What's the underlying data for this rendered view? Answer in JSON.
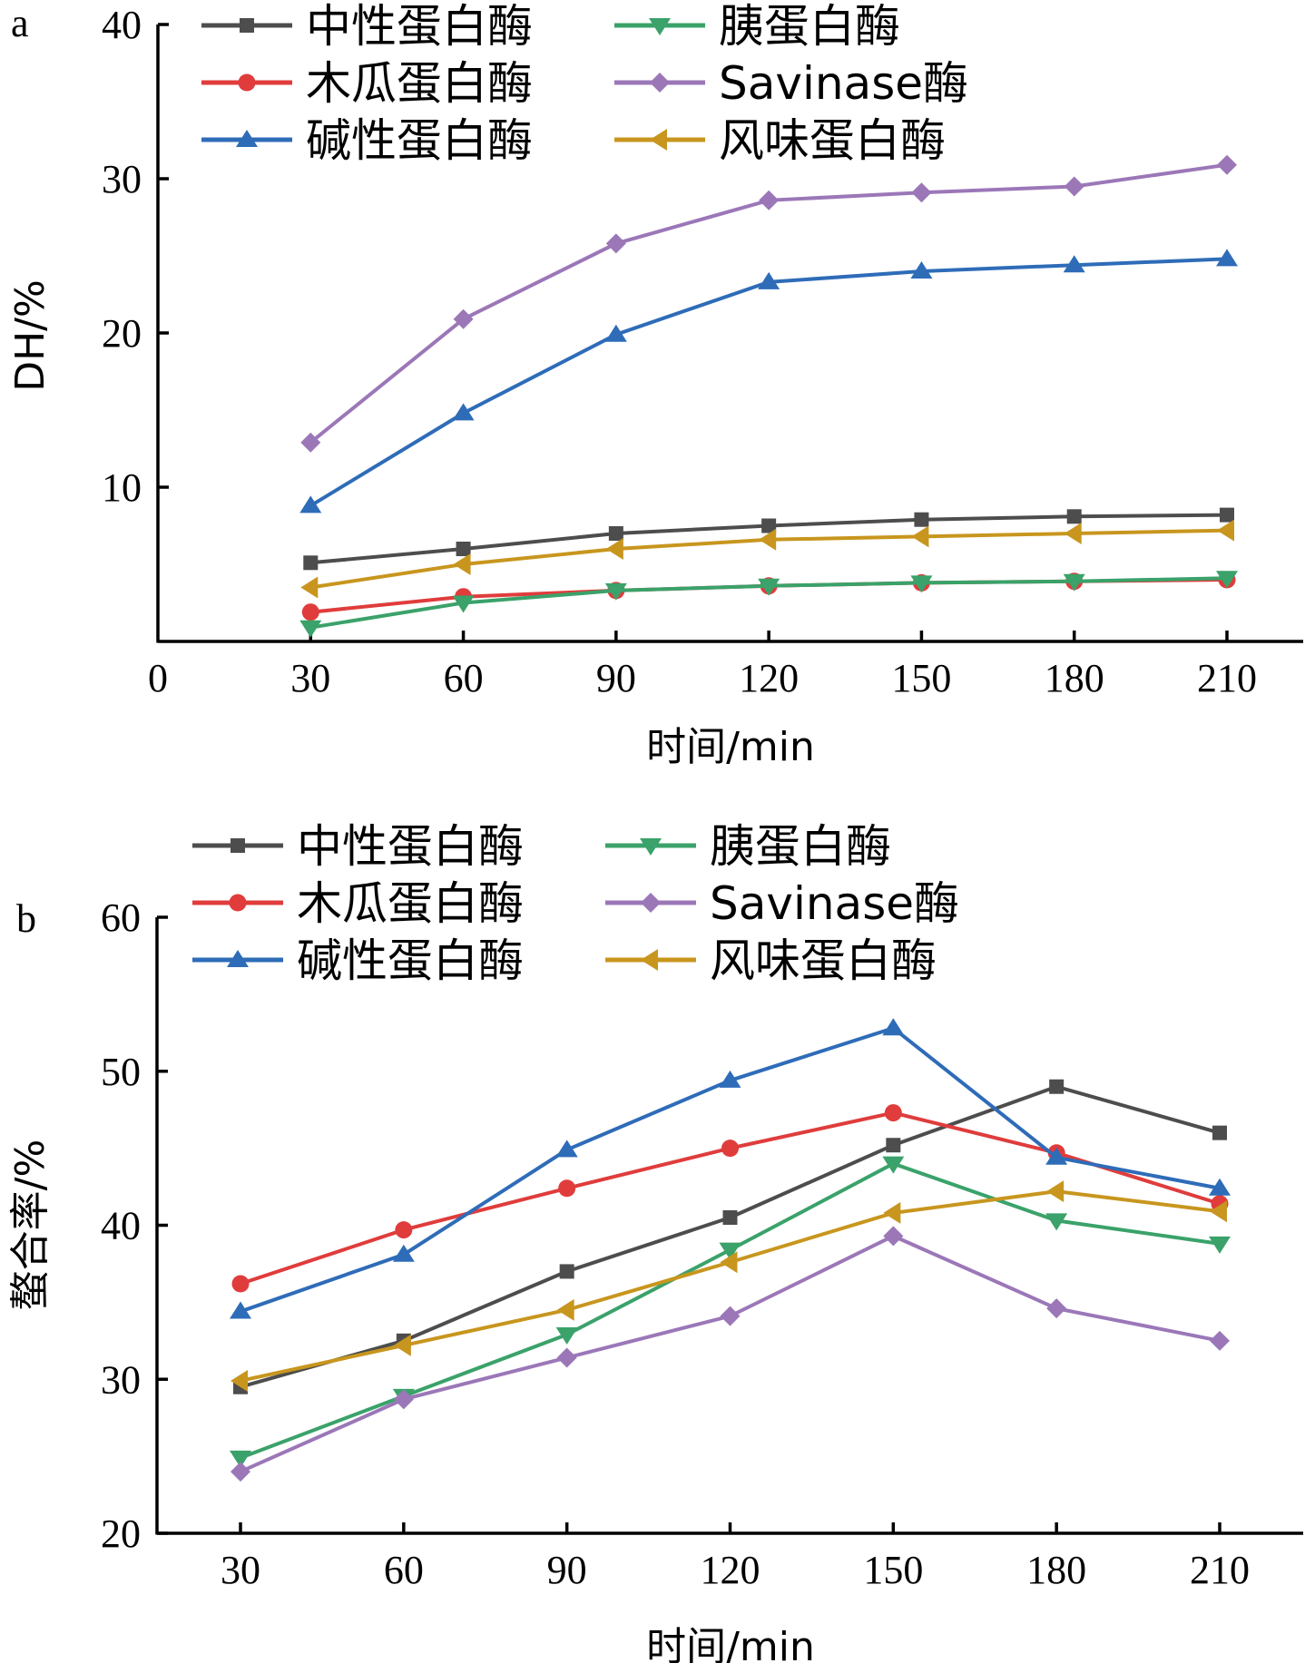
{
  "chart_data": [
    {
      "type": "line",
      "panel_label": "a",
      "title": "",
      "xlabel": "时间/min",
      "ylabel": "DH/%",
      "x": [
        30,
        60,
        90,
        120,
        150,
        180,
        210
      ],
      "xlim": [
        0,
        210
      ],
      "ylim": [
        0,
        40
      ],
      "xticks": [
        0,
        30,
        60,
        90,
        120,
        150,
        180,
        210
      ],
      "yticks": [
        10,
        20,
        30,
        40
      ],
      "ytick_labels": [
        "10",
        "20",
        "30",
        "40"
      ],
      "xtick_labels": [
        "0",
        "30",
        "60",
        "90",
        "120",
        "150",
        "180",
        "210"
      ],
      "grid": false,
      "legend_position": "top",
      "series": [
        {
          "name": "中性蛋白酶",
          "color": "#4d4d4d",
          "marker": "square",
          "values": [
            5.1,
            6.0,
            7.0,
            7.5,
            7.9,
            8.1,
            8.2
          ]
        },
        {
          "name": "木瓜蛋白酶",
          "color": "#e03c3c",
          "marker": "circle",
          "values": [
            1.9,
            2.9,
            3.3,
            3.6,
            3.8,
            3.9,
            4.0
          ]
        },
        {
          "name": "碱性蛋白酶",
          "color": "#2e6cb8",
          "marker": "triangle-up",
          "values": [
            8.8,
            14.8,
            19.9,
            23.3,
            24.0,
            24.4,
            24.8
          ]
        },
        {
          "name": "胰蛋白酶",
          "color": "#3aa26a",
          "marker": "triangle-down",
          "values": [
            0.9,
            2.5,
            3.3,
            3.6,
            3.8,
            3.9,
            4.1
          ]
        },
        {
          "name": "Savinase酶",
          "color": "#9b77b8",
          "marker": "diamond",
          "values": [
            12.9,
            20.9,
            25.8,
            28.6,
            29.1,
            29.5,
            30.9
          ]
        },
        {
          "name": "风味蛋白酶",
          "color": "#c8961e",
          "marker": "triangle-left",
          "values": [
            3.5,
            5.0,
            6.0,
            6.6,
            6.8,
            7.0,
            7.2
          ]
        }
      ]
    },
    {
      "type": "line",
      "panel_label": "b",
      "title": "",
      "xlabel": "时间/min",
      "ylabel": "螯合率/%",
      "x": [
        30,
        60,
        90,
        120,
        150,
        180,
        210
      ],
      "xlim": [
        10,
        240
      ],
      "ylim": [
        20,
        60
      ],
      "xticks": [
        30,
        60,
        90,
        120,
        150,
        180,
        210
      ],
      "yticks": [
        20,
        30,
        40,
        50,
        60
      ],
      "ytick_labels": [
        "20",
        "30",
        "40",
        "50",
        "60"
      ],
      "xtick_labels": [
        "30",
        "60",
        "90",
        "120",
        "150",
        "180",
        "210"
      ],
      "grid": false,
      "legend_position": "top",
      "series": [
        {
          "name": "中性蛋白酶",
          "color": "#4d4d4d",
          "marker": "square",
          "values": [
            29.5,
            32.5,
            37.0,
            40.5,
            45.2,
            49.0,
            46.0
          ]
        },
        {
          "name": "木瓜蛋白酶",
          "color": "#e03c3c",
          "marker": "circle",
          "values": [
            36.2,
            39.7,
            42.4,
            45.0,
            47.3,
            44.7,
            41.4
          ]
        },
        {
          "name": "碱性蛋白酶",
          "color": "#2e6cb8",
          "marker": "triangle-up",
          "values": [
            34.4,
            38.1,
            44.9,
            49.4,
            52.8,
            44.4,
            42.4
          ]
        },
        {
          "name": "胰蛋白酶",
          "color": "#3aa26a",
          "marker": "triangle-down",
          "values": [
            24.9,
            28.9,
            32.9,
            38.4,
            44.0,
            40.3,
            38.8
          ]
        },
        {
          "name": "Savinase酶",
          "color": "#9b77b8",
          "marker": "diamond",
          "values": [
            24.0,
            28.7,
            31.4,
            34.1,
            39.3,
            34.6,
            32.5
          ]
        },
        {
          "name": "风味蛋白酶",
          "color": "#c8961e",
          "marker": "triangle-left",
          "values": [
            29.9,
            32.2,
            34.5,
            37.6,
            40.8,
            42.2,
            40.9
          ]
        }
      ]
    }
  ]
}
